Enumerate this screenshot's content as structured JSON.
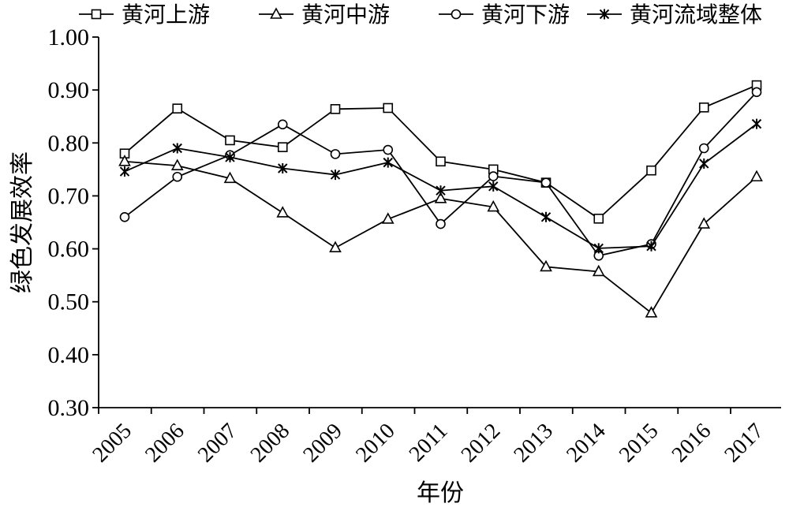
{
  "chart_data": {
    "type": "line",
    "title": "",
    "xlabel": "年份",
    "ylabel": "绿色发展效率",
    "ylim": [
      0.3,
      1.0
    ],
    "yticks": [
      "0.30",
      "0.40",
      "0.50",
      "0.60",
      "0.70",
      "0.80",
      "0.90",
      "1.00"
    ],
    "categories": [
      "2005",
      "2006",
      "2007",
      "2008",
      "2009",
      "2010",
      "2011",
      "2012",
      "2013",
      "2014",
      "2015",
      "2016",
      "2017"
    ],
    "grid": false,
    "legend_position": "top",
    "series": [
      {
        "name": "黄河上游",
        "marker": "square",
        "values": [
          0.78,
          0.865,
          0.805,
          0.792,
          0.864,
          0.866,
          0.765,
          0.75,
          0.725,
          0.657,
          0.748,
          0.867,
          0.909
        ]
      },
      {
        "name": "黄河中游",
        "marker": "triangle",
        "values": [
          0.765,
          0.757,
          0.733,
          0.668,
          0.602,
          0.656,
          0.695,
          0.679,
          0.566,
          0.557,
          0.479,
          0.647,
          0.736
        ]
      },
      {
        "name": "黄河下游",
        "marker": "circle",
        "values": [
          0.66,
          0.736,
          0.777,
          0.835,
          0.779,
          0.787,
          0.647,
          0.737,
          0.725,
          0.587,
          0.609,
          0.79,
          0.896
        ]
      },
      {
        "name": "黄河流域整体",
        "marker": "star",
        "values": [
          0.746,
          0.79,
          0.773,
          0.752,
          0.74,
          0.763,
          0.71,
          0.718,
          0.66,
          0.601,
          0.605,
          0.761,
          0.836
        ]
      }
    ]
  }
}
